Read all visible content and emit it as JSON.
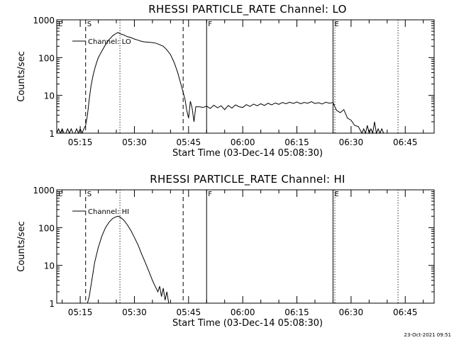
{
  "footer": {
    "timestamp": "23-Oct-2021 09:51"
  },
  "chart_data": [
    {
      "type": "line",
      "title": "RHESSI PARTICLE_RATE Channel: LO",
      "xlabel": "Start Time (03-Dec-14 05:08:30)",
      "ylabel": "Counts/sec",
      "yscale": "log",
      "ylim": [
        1,
        1000
      ],
      "xlim": [
        "05:08:30",
        "06:53:00"
      ],
      "xticks": [
        "05:15",
        "05:30",
        "05:45",
        "06:00",
        "06:15",
        "06:30",
        "06:45"
      ],
      "yticks": [
        "1",
        "10",
        "100",
        "1000"
      ],
      "legend": {
        "label": "Channel: LO",
        "placement": "top-left"
      },
      "markers": [
        {
          "time": "05:08:30",
          "label": "E",
          "style": "solid"
        },
        {
          "time": "05:16:30",
          "label": "S",
          "style": "dashed"
        },
        {
          "time": "05:26:00",
          "label": "",
          "style": "dotted"
        },
        {
          "time": "05:43:30",
          "label": "",
          "style": "dashed"
        },
        {
          "time": "05:50:00",
          "label": "F",
          "style": "solid"
        },
        {
          "time": "06:25:00",
          "label": "E",
          "style": "solid"
        },
        {
          "time": "06:25:30",
          "label": "",
          "style": "dotted"
        },
        {
          "time": "06:43:00",
          "label": "",
          "style": "dotted"
        }
      ],
      "series": [
        {
          "values": [
            [
              "05:08:30",
              1
            ],
            [
              "05:09:00",
              1.3
            ],
            [
              "05:09:30",
              1
            ],
            [
              "05:10:00",
              1.3
            ],
            [
              "05:10:30",
              1
            ],
            [
              "05:11:00",
              1
            ],
            [
              "05:11:30",
              1.3
            ],
            [
              "05:12:00",
              1
            ],
            [
              "05:12:30",
              1.3
            ],
            [
              "05:13:00",
              1
            ],
            [
              "05:13:30",
              1
            ],
            [
              "05:14:00",
              1.3
            ],
            [
              "05:14:30",
              1
            ],
            [
              "05:15:00",
              1.3
            ],
            [
              "05:15:30",
              1
            ],
            [
              "05:16:00",
              1.3
            ],
            [
              "05:16:30",
              1.6
            ],
            [
              "05:17:00",
              3
            ],
            [
              "05:17:30",
              8
            ],
            [
              "05:18:00",
              18
            ],
            [
              "05:18:30",
              32
            ],
            [
              "05:19:00",
              50
            ],
            [
              "05:19:30",
              72
            ],
            [
              "05:20:00",
              100
            ],
            [
              "05:21:00",
              150
            ],
            [
              "05:22:00",
              220
            ],
            [
              "05:23:00",
              300
            ],
            [
              "05:24:00",
              380
            ],
            [
              "05:25:00",
              440
            ],
            [
              "05:25:30",
              460
            ],
            [
              "05:26:00",
              430
            ],
            [
              "05:27:00",
              400
            ],
            [
              "05:28:00",
              360
            ],
            [
              "05:29:00",
              340
            ],
            [
              "05:30:00",
              310
            ],
            [
              "05:31:00",
              290
            ],
            [
              "05:32:00",
              270
            ],
            [
              "05:33:00",
              260
            ],
            [
              "05:34:00",
              255
            ],
            [
              "05:35:00",
              250
            ],
            [
              "05:36:00",
              240
            ],
            [
              "05:37:00",
              220
            ],
            [
              "05:38:00",
              200
            ],
            [
              "05:39:00",
              160
            ],
            [
              "05:40:00",
              120
            ],
            [
              "05:41:00",
              75
            ],
            [
              "05:42:00",
              40
            ],
            [
              "05:43:00",
              18
            ],
            [
              "05:44:00",
              8
            ],
            [
              "05:44:30",
              4
            ],
            [
              "05:45:00",
              2.5
            ],
            [
              "05:45:30",
              7
            ],
            [
              "05:46:00",
              4.5
            ],
            [
              "05:46:30",
              2
            ],
            [
              "05:47:00",
              5
            ],
            [
              "05:48:00",
              5
            ],
            [
              "05:49:00",
              4.8
            ],
            [
              "05:50:00",
              5.2
            ],
            [
              "05:51:00",
              4.5
            ],
            [
              "05:52:00",
              5.5
            ],
            [
              "05:53:00",
              4.7
            ],
            [
              "05:54:00",
              5.3
            ],
            [
              "05:55:00",
              4.2
            ],
            [
              "05:56:00",
              5.4
            ],
            [
              "05:57:00",
              4.6
            ],
            [
              "05:58:00",
              5.6
            ],
            [
              "05:59:00",
              5
            ],
            [
              "06:00:00",
              4.8
            ],
            [
              "06:01:00",
              5.7
            ],
            [
              "06:02:00",
              5.1
            ],
            [
              "06:03:00",
              5.9
            ],
            [
              "06:04:00",
              5.3
            ],
            [
              "06:05:00",
              6
            ],
            [
              "06:06:00",
              5.4
            ],
            [
              "06:07:00",
              6.2
            ],
            [
              "06:08:00",
              5.6
            ],
            [
              "06:09:00",
              6.3
            ],
            [
              "06:10:00",
              5.8
            ],
            [
              "06:11:00",
              6.5
            ],
            [
              "06:12:00",
              6
            ],
            [
              "06:13:00",
              6.6
            ],
            [
              "06:14:00",
              6.1
            ],
            [
              "06:15:00",
              6.7
            ],
            [
              "06:16:00",
              6
            ],
            [
              "06:17:00",
              6.5
            ],
            [
              "06:18:00",
              6.2
            ],
            [
              "06:19:00",
              6.8
            ],
            [
              "06:20:00",
              6.1
            ],
            [
              "06:21:00",
              6.4
            ],
            [
              "06:22:00",
              5.9
            ],
            [
              "06:23:00",
              6.6
            ],
            [
              "06:24:00",
              6.2
            ],
            [
              "06:25:00",
              6.5
            ],
            [
              "06:25:30",
              5
            ],
            [
              "06:26:00",
              4
            ],
            [
              "06:27:00",
              3.5
            ],
            [
              "06:28:00",
              4.2
            ],
            [
              "06:29:00",
              2.5
            ],
            [
              "06:30:00",
              2.2
            ],
            [
              "06:31:00",
              1.6
            ],
            [
              "06:32:00",
              1.5
            ],
            [
              "06:33:00",
              1
            ],
            [
              "06:33:30",
              1.3
            ],
            [
              "06:34:00",
              1
            ],
            [
              "06:34:30",
              1.6
            ],
            [
              "06:35:00",
              1
            ],
            [
              "06:35:30",
              1.3
            ],
            [
              "06:36:00",
              1
            ],
            [
              "06:36:30",
              2
            ],
            [
              "06:37:00",
              1
            ],
            [
              "06:37:30",
              1.3
            ],
            [
              "06:38:00",
              1
            ],
            [
              "06:38:30",
              1.3
            ],
            [
              "06:39:00",
              1
            ]
          ]
        }
      ]
    },
    {
      "type": "line",
      "title": "RHESSI PARTICLE_RATE Channel: HI",
      "xlabel": "Start Time (03-Dec-14 05:08:30)",
      "ylabel": "Counts/sec",
      "yscale": "log",
      "ylim": [
        1,
        1000
      ],
      "xlim": [
        "05:08:30",
        "06:53:00"
      ],
      "xticks": [
        "05:15",
        "05:30",
        "05:45",
        "06:00",
        "06:15",
        "06:30",
        "06:45"
      ],
      "yticks": [
        "1",
        "10",
        "100",
        "1000"
      ],
      "legend": {
        "label": "Channel: HI",
        "placement": "top-left"
      },
      "markers": [
        {
          "time": "05:08:30",
          "label": "E",
          "style": "solid"
        },
        {
          "time": "05:16:30",
          "label": "S",
          "style": "dashed"
        },
        {
          "time": "05:26:00",
          "label": "",
          "style": "dotted"
        },
        {
          "time": "05:43:30",
          "label": "",
          "style": "dashed"
        },
        {
          "time": "05:50:00",
          "label": "F",
          "style": "solid"
        },
        {
          "time": "06:25:00",
          "label": "E",
          "style": "solid"
        },
        {
          "time": "06:25:30",
          "label": "",
          "style": "dotted"
        },
        {
          "time": "06:43:00",
          "label": "",
          "style": "dotted"
        }
      ],
      "series": [
        {
          "values": [
            [
              "05:17:00",
              1
            ],
            [
              "05:17:30",
              1.5
            ],
            [
              "05:18:00",
              3
            ],
            [
              "05:18:30",
              6
            ],
            [
              "05:19:00",
              12
            ],
            [
              "05:20:00",
              30
            ],
            [
              "05:21:00",
              60
            ],
            [
              "05:22:00",
              100
            ],
            [
              "05:23:00",
              140
            ],
            [
              "05:24:00",
              175
            ],
            [
              "05:25:00",
              195
            ],
            [
              "05:25:30",
              200
            ],
            [
              "05:26:00",
              190
            ],
            [
              "05:27:00",
              160
            ],
            [
              "05:28:00",
              120
            ],
            [
              "05:29:00",
              85
            ],
            [
              "05:30:00",
              55
            ],
            [
              "05:31:00",
              35
            ],
            [
              "05:32:00",
              20
            ],
            [
              "05:33:00",
              12
            ],
            [
              "05:34:00",
              7
            ],
            [
              "05:35:00",
              4
            ],
            [
              "05:36:00",
              2.5
            ],
            [
              "05:36:30",
              2
            ],
            [
              "05:37:00",
              2.8
            ],
            [
              "05:37:30",
              1.5
            ],
            [
              "05:38:00",
              2.5
            ],
            [
              "05:38:30",
              1.2
            ],
            [
              "05:39:00",
              2
            ],
            [
              "05:39:30",
              1
            ]
          ]
        }
      ]
    }
  ]
}
